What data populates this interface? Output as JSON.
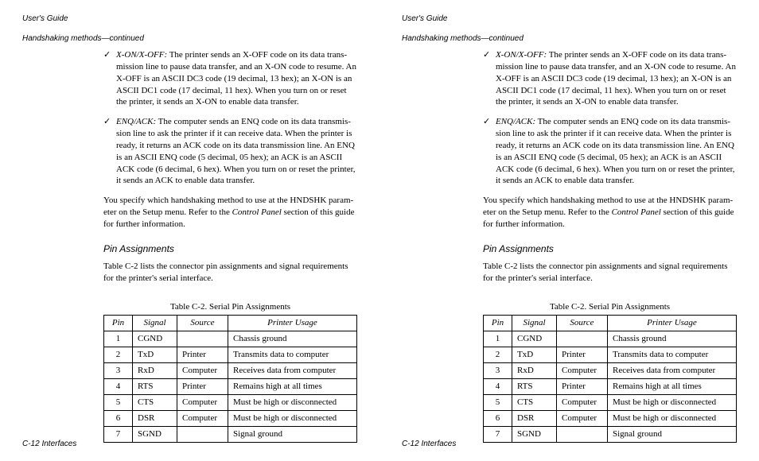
{
  "header": "User's Guide",
  "subheader": "Handshaking methods—continued",
  "bullets": [
    {
      "term": "X-ON/X-OFF:",
      "text": "  The printer sends an X-OFF code on its data trans­mission line to pause data transfer, and an X-ON code to resume. An X-OFF is an ASCII DC3 code (19 decimal, 13 hex); an X-ON is an ASCII DC1 code (17 decimal, 11 hex).  When you turn on or reset the printer, it sends an X-ON to enable data transfer."
    },
    {
      "term": "ENQ/ACK:",
      "text": "  The computer sends an ENQ code on its data transmis­sion line to ask the printer if it can receive data.  When the printer is ready, it returns an ACK code on its data transmission line.  An ENQ is an ASCII ENQ code (5 decimal, 05 hex); an ACK is an ASCII ACK code (6 decimal, 6 hex).  When you turn on or reset the printer, it sends an ACK to enable data transfer."
    }
  ],
  "para_pre": "You specify which handshaking method to use at the HNDSHK param­eter on the Setup menu.  Refer to the ",
  "para_italic": "Control Panel",
  "para_post": " section of this guide for further information.",
  "section_head": "Pin Assignments",
  "intro": "Table C-2 lists the connector pin assignments and signal requirements for the printer's serial interface.",
  "table_caption": "Table C-2.  Serial Pin Assignments",
  "cols": {
    "pin": "Pin",
    "signal": "Signal",
    "source": "Source",
    "usage": "Printer  Usage"
  },
  "rows": [
    {
      "pin": "1",
      "signal": "CGND",
      "source": "",
      "usage": "Chassis ground"
    },
    {
      "pin": "2",
      "signal": "TxD",
      "source": "Printer",
      "usage": "Transmits data to computer"
    },
    {
      "pin": "3",
      "signal": "RxD",
      "source": "Computer",
      "usage": "Receives data from computer"
    },
    {
      "pin": "4",
      "signal": "RTS",
      "source": "Printer",
      "usage": "Remains high at all times"
    },
    {
      "pin": "5",
      "signal": "CTS",
      "source": "Computer",
      "usage": "Must be high or disconnected"
    },
    {
      "pin": "6",
      "signal": "DSR",
      "source": "Computer",
      "usage": "Must be high or disconnected"
    },
    {
      "pin": "7",
      "signal": "SGND",
      "source": "",
      "usage": "Signal ground"
    }
  ],
  "footer": "C-12  Interfaces"
}
